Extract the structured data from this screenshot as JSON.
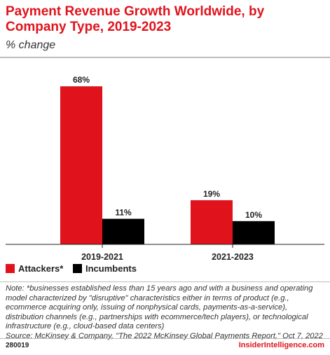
{
  "header": {
    "title": "Payment Revenue Growth Worldwide, by Company Type, 2019-2023",
    "subtitle": "% change"
  },
  "chart_data": {
    "type": "bar",
    "title": "Payment Revenue Growth Worldwide, by Company Type, 2019-2023",
    "subtitle": "% change",
    "categories": [
      "2019-2021",
      "2021-2023"
    ],
    "series": [
      {
        "name": "Attackers*",
        "values": [
          68,
          19
        ],
        "labels": [
          "68%",
          "19%"
        ],
        "color": "#e0131c"
      },
      {
        "name": "Incumbents",
        "values": [
          11,
          10
        ],
        "labels": [
          "11%",
          "10%"
        ],
        "color": "#000000"
      }
    ],
    "ylim": [
      0,
      75
    ],
    "grid": false,
    "legend_position": "bottom-left"
  },
  "legend": {
    "items": [
      {
        "label": "Attackers*",
        "color": "#e0131c"
      },
      {
        "label": "Incumbents",
        "color": "#000000"
      }
    ]
  },
  "footnote": {
    "note": "Note: *businesses established less than 15 years ago and with a business and operating model characterized by \"disruptive\" characteristics either in terms of product (e.g., ecommerce acquiring only, issuing of nonphysical cards, payments-as-a-service), distribution channels (e.g., partnerships with ecommerce/tech players), or technological infrastructure (e.g., cloud-based data centers)",
    "source": "Source: McKinsey & Company, \"The 2022 McKinsey Global Payments Report,\" Oct 7, 2022"
  },
  "footer": {
    "chart_id": "280019",
    "brand": "InsiderIntelligence.com",
    "brand_color": "#e0131c"
  }
}
